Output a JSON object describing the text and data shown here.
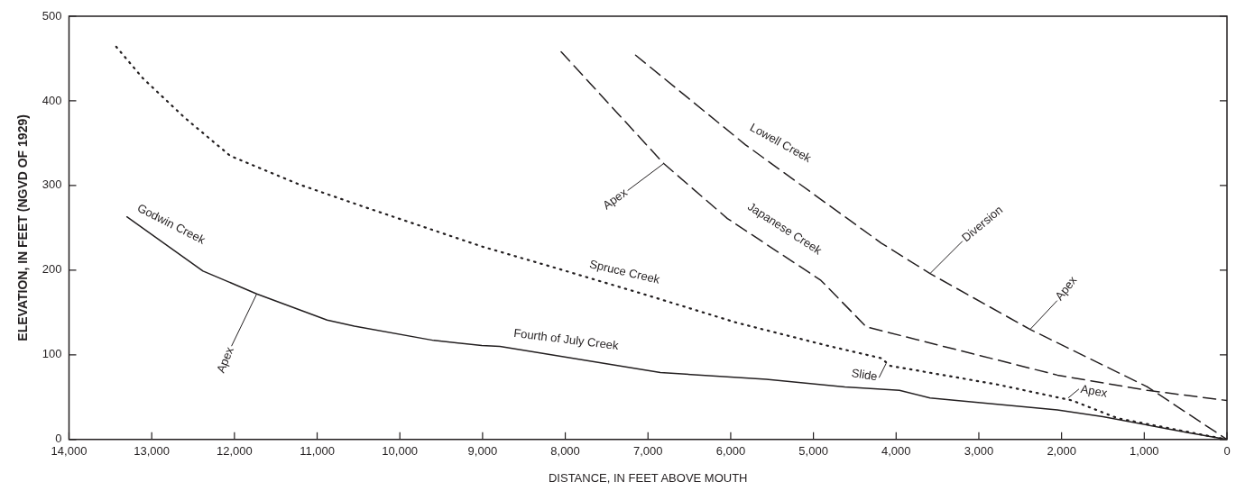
{
  "chart_data": {
    "type": "line",
    "xlabel": "DISTANCE, IN FEET ABOVE MOUTH",
    "ylabel": "ELEVATION, IN FEET (NGVD OF 1929)",
    "xlim": [
      14000,
      0
    ],
    "ylim": [
      0,
      500
    ],
    "xticks": [
      {
        "value": 14000,
        "label": "14,000"
      },
      {
        "value": 13000,
        "label": "13,000"
      },
      {
        "value": 12000,
        "label": "12,000"
      },
      {
        "value": 11000,
        "label": "11,000"
      },
      {
        "value": 10000,
        "label": "10,000"
      },
      {
        "value": 9000,
        "label": "9,000"
      },
      {
        "value": 8000,
        "label": "8,000"
      },
      {
        "value": 7000,
        "label": "7,000"
      },
      {
        "value": 6000,
        "label": "6,000"
      },
      {
        "value": 5000,
        "label": "5,000"
      },
      {
        "value": 4000,
        "label": "4,000"
      },
      {
        "value": 3000,
        "label": "3,000"
      },
      {
        "value": 2000,
        "label": "2,000"
      },
      {
        "value": 1000,
        "label": "1,000"
      },
      0
    ],
    "yticks": [
      0,
      100,
      200,
      300,
      400,
      500
    ],
    "series": [
      {
        "color": "#231f20",
        "line_style": "solid",
        "x": [
          13300,
          12380,
          11730,
          10880,
          10550,
          9590,
          9010,
          8790,
          6850,
          5570,
          4620,
          3960,
          3590,
          2050,
          1500,
          470,
          0
        ],
        "values": [
          263,
          199,
          172,
          141,
          134,
          117,
          111,
          110,
          79,
          71,
          62,
          58,
          49,
          35,
          27,
          8,
          0
        ]
      },
      {
        "color": "#231f20",
        "line_style": "dotted",
        "x": [
          13430,
          13110,
          12600,
          12050,
          11210,
          10410,
          9010,
          8130,
          7030,
          5930,
          4840,
          4180,
          4070,
          2780,
          1870,
          1320,
          0
        ],
        "values": [
          464,
          427,
          380,
          335,
          301,
          274,
          228,
          203,
          171,
          138,
          111,
          96,
          87,
          65,
          46,
          25,
          0
        ]
      },
      {
        "color": "#231f20",
        "line_style": "dashed",
        "x": [
          8050,
          6810,
          6040,
          4910,
          4360,
          2050,
          960,
          0
        ],
        "values": [
          458,
          326,
          261,
          188,
          133,
          76,
          58,
          46
        ]
      },
      {
        "color": "#231f20",
        "line_style": "dashed",
        "x": [
          7150,
          5820,
          4180,
          3590,
          2380,
          960,
          0
        ],
        "values": [
          454,
          348,
          232,
          196,
          130,
          62,
          0
        ]
      }
    ],
    "annotations": [
      {
        "text": "Godwin Creek",
        "x": 12800,
        "y": 235
      },
      {
        "text": "Apex",
        "x": 11730,
        "y": 172
      },
      {
        "text": "Fourth of July Creek",
        "x": 8000,
        "y": 100
      },
      {
        "text": "Spruce Creek",
        "x": 7300,
        "y": 180
      },
      {
        "text": "Slide",
        "x": 4120,
        "y": 90
      },
      {
        "text": "Apex",
        "x": 1920,
        "y": 49
      },
      {
        "text": "Apex",
        "x": 6810,
        "y": 326
      },
      {
        "text": "Japanese Creek",
        "x": 5500,
        "y": 230
      },
      {
        "text": "Lowell Creek",
        "x": 5500,
        "y": 330
      },
      {
        "text": "Diversion",
        "x": 3590,
        "y": 196
      },
      {
        "text": "Apex",
        "x": 2380,
        "y": 130
      }
    ]
  }
}
